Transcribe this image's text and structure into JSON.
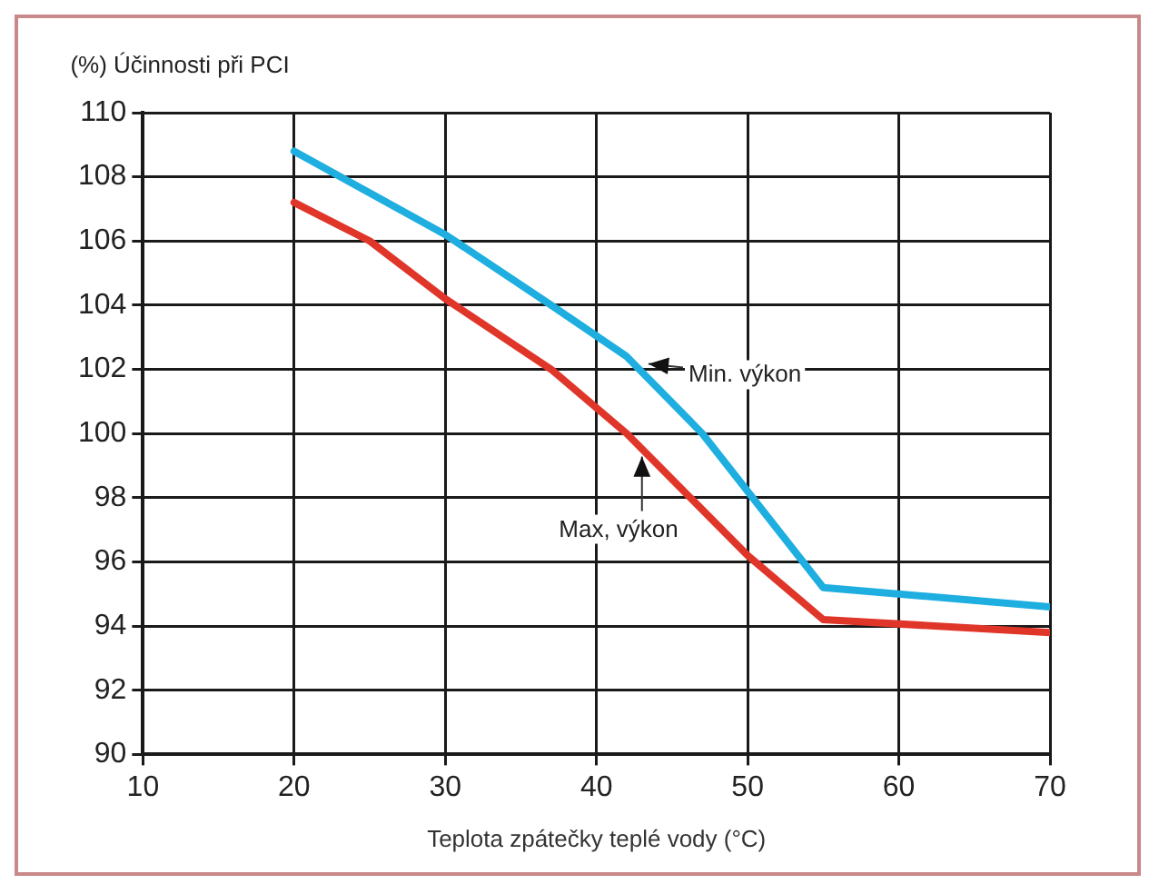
{
  "chart_data": {
    "type": "line",
    "ylabel": "(%) Účinnosti při PCI",
    "xlabel": "Teplota zpátečky teplé vody (°C)",
    "series": [
      {
        "name": "Min. výkon",
        "color": "#1eaee0",
        "x": [
          20,
          30,
          37,
          42,
          47,
          55,
          70
        ],
        "values": [
          108.8,
          106.2,
          104,
          102.4,
          100,
          95.2,
          94.6
        ]
      },
      {
        "name": "Max, výkon",
        "color": "#e0362a",
        "x": [
          20,
          25,
          30,
          37,
          42,
          50,
          55,
          70
        ],
        "values": [
          107.2,
          106,
          104.2,
          102,
          100,
          96.2,
          94.2,
          93.8
        ]
      }
    ],
    "xlim": [
      10,
      70
    ],
    "xticks": [
      10,
      20,
      30,
      40,
      50,
      60,
      70
    ],
    "ylim": [
      90,
      110
    ],
    "yticks": [
      90,
      92,
      94,
      96,
      98,
      100,
      102,
      104,
      106,
      108,
      110
    ],
    "grid": true,
    "legend": false,
    "marker": "none",
    "line_style": "solid"
  }
}
